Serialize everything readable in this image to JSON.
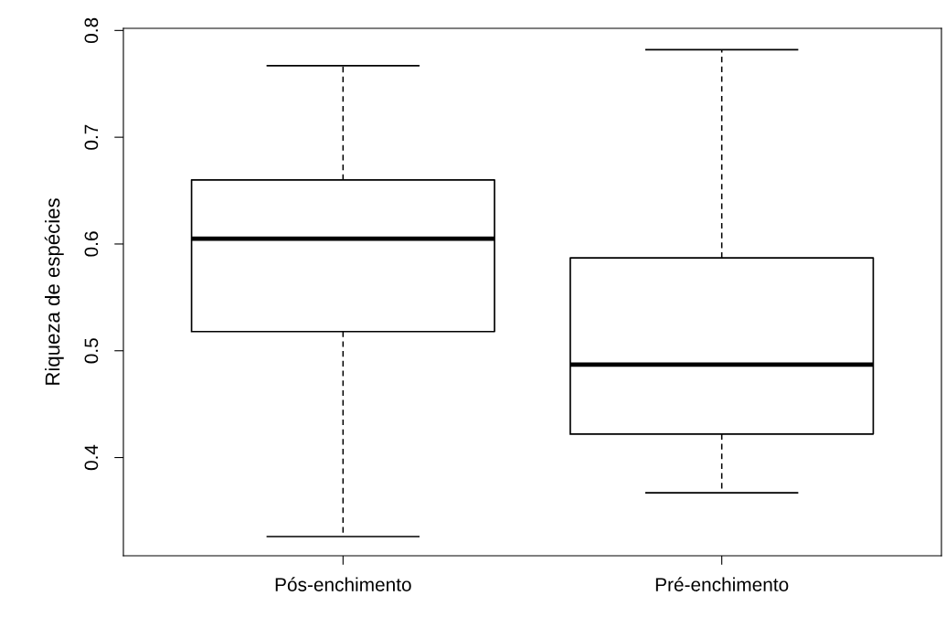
{
  "chart_data": {
    "type": "box",
    "ylabel": "Riqueza de espécies",
    "categories": [
      "Pós-enchimento",
      "Pré-enchimento"
    ],
    "boxes": [
      {
        "low": 0.326,
        "q1": 0.518,
        "median": 0.605,
        "q3": 0.66,
        "high": 0.767
      },
      {
        "low": 0.367,
        "q1": 0.422,
        "median": 0.487,
        "q3": 0.587,
        "high": 0.782
      }
    ],
    "ylim": [
      0.308,
      0.802
    ],
    "yticks": [
      0.4,
      0.5,
      0.6,
      0.7,
      0.8
    ],
    "grid": false
  }
}
